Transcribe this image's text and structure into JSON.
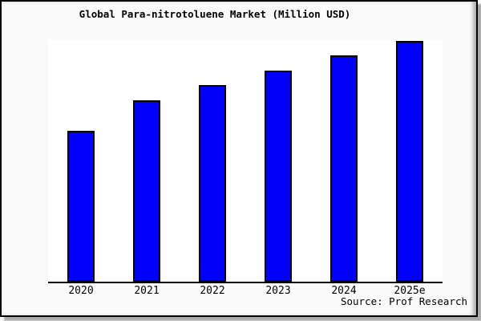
{
  "frame": {
    "background": "#fafafa",
    "border_color": "#000000",
    "shadow_color": "#aaaaaa"
  },
  "source_label": "Source: Prof Research",
  "chart_data": {
    "type": "bar",
    "title": "Global Para-nitrotoluene Market (Million USD)",
    "categories": [
      "2020",
      "2021",
      "2022",
      "2023",
      "2024",
      "2025e"
    ],
    "values": [
      62.7,
      75.2,
      81.5,
      87.5,
      93.7,
      100.0
    ],
    "units_note": "y-axis unlabeled in image; values are relative bar heights indexed to 2025e = 100",
    "xlabel": "",
    "ylabel": "",
    "ylim": [
      0,
      100.5
    ],
    "grid": false,
    "legend": false,
    "plot_bg": "#ffffff",
    "bar_fill": "#0101fb",
    "bar_border": "#000000",
    "axis_color": "#000000"
  }
}
